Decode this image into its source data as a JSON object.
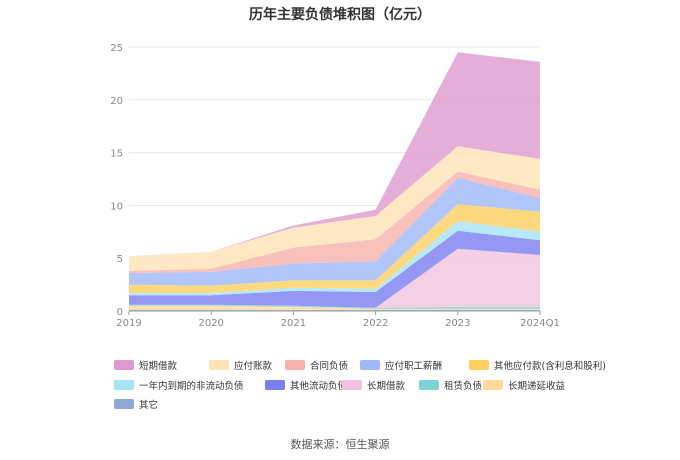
{
  "chart_data": {
    "type": "area",
    "stacked": true,
    "title": "历年主要负债堆积图（亿元）",
    "xlabel": "",
    "ylabel": "",
    "ylim": [
      0,
      25
    ],
    "yticks": [
      0,
      5,
      10,
      15,
      20,
      25
    ],
    "grid": true,
    "legend_position": "bottom",
    "categories": [
      "2019",
      "2020",
      "2021",
      "2022",
      "2023",
      "2024Q1"
    ],
    "series": [
      {
        "name": "其它",
        "color": "#8fa9d6",
        "values": [
          0.1,
          0.1,
          0.1,
          0.1,
          0.1,
          0.1
        ]
      },
      {
        "name": "长期递延收益",
        "color": "#ffd99a",
        "values": [
          0.4,
          0.4,
          0.3,
          0.1,
          0.1,
          0.1
        ]
      },
      {
        "name": "租赁负债",
        "color": "#7fd3d6",
        "values": [
          0.1,
          0.1,
          0.1,
          0.1,
          0.2,
          0.2
        ]
      },
      {
        "name": "长期借款",
        "color": "#f0c4df",
        "values": [
          0.0,
          0.0,
          0.0,
          0.0,
          5.5,
          4.9
        ]
      },
      {
        "name": "其他流动负债",
        "color": "#7b7ef0",
        "values": [
          0.9,
          0.9,
          1.4,
          1.5,
          1.7,
          1.4
        ]
      },
      {
        "name": "一年内到期的非流动负债",
        "color": "#a6e3f5",
        "values": [
          0.2,
          0.2,
          0.3,
          0.3,
          0.9,
          0.8
        ]
      },
      {
        "name": "其他应付款(含利息和股利)",
        "color": "#ffd060",
        "values": [
          0.8,
          0.7,
          0.7,
          0.8,
          1.6,
          1.9
        ]
      },
      {
        "name": "应付职工薪酬",
        "color": "#9fb8f7",
        "values": [
          1.1,
          1.3,
          1.6,
          1.8,
          2.5,
          1.3
        ]
      },
      {
        "name": "合同负债",
        "color": "#f8b2ab",
        "values": [
          0.2,
          0.3,
          1.5,
          2.1,
          0.6,
          0.8
        ]
      },
      {
        "name": "应付账款",
        "color": "#ffe2b5",
        "values": [
          1.4,
          1.6,
          1.9,
          2.2,
          2.4,
          2.9
        ]
      },
      {
        "name": "短期借款",
        "color": "#df9ad0",
        "values": [
          0.0,
          0.0,
          0.2,
          0.6,
          8.9,
          9.2
        ]
      }
    ]
  },
  "legend_order": [
    "短期借款",
    "应付账款",
    "合同负债",
    "应付职工薪酬",
    "其他应付款(含利息和股利)",
    "一年内到期的非流动负债",
    "其他流动负债",
    "长期借款",
    "租赁负债",
    "长期递延收益",
    "其它"
  ],
  "footer": {
    "source": "数据来源：恒生聚源"
  }
}
